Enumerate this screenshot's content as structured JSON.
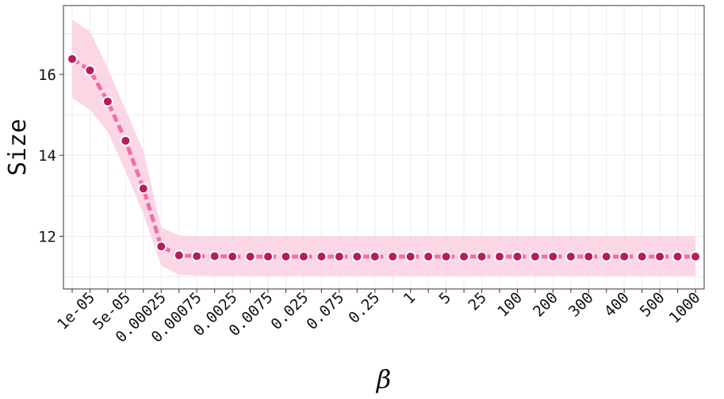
{
  "chart_data": {
    "type": "line",
    "xlabel": "β",
    "ylabel": "Size",
    "ylim": [
      10.7,
      17.7
    ],
    "yticks": [
      12,
      14,
      16
    ],
    "grid": true,
    "x_all": [
      "5e-06",
      "1e-05",
      "2.5e-05",
      "5e-05",
      "0.0001",
      "0.00025",
      "0.0005",
      "0.00075",
      "0.001",
      "0.0025",
      "0.005",
      "0.0075",
      "0.01",
      "0.025",
      "0.05",
      "0.075",
      "0.1",
      "0.25",
      "0.5",
      "1",
      "2.5",
      "5",
      "10",
      "25",
      "50",
      "100",
      "150",
      "200",
      "250",
      "300",
      "350",
      "400",
      "450",
      "500",
      "750",
      "1000"
    ],
    "x_tick_labels": [
      "",
      "1e-05",
      "",
      "5e-05",
      "",
      "0.00025",
      "",
      "0.00075",
      "",
      "0.0025",
      "",
      "0.0075",
      "",
      "0.025",
      "",
      "0.075",
      "",
      "0.25",
      "",
      "1",
      "",
      "5",
      "",
      "25",
      "",
      "100",
      "",
      "200",
      "",
      "300",
      "",
      "400",
      "",
      "500",
      "",
      "1000"
    ],
    "series": [
      {
        "color": "#f06fa6",
        "marker_color": "#b81c5c",
        "band_color": "#fbd3e2",
        "values": [
          16.38,
          16.1,
          15.33,
          14.36,
          13.18,
          11.75,
          11.53,
          11.51,
          11.51,
          11.5,
          11.5,
          11.5,
          11.5,
          11.5,
          11.5,
          11.5,
          11.5,
          11.5,
          11.5,
          11.5,
          11.5,
          11.5,
          11.5,
          11.5,
          11.5,
          11.5,
          11.5,
          11.5,
          11.5,
          11.5,
          11.5,
          11.5,
          11.5,
          11.5,
          11.5,
          11.5
        ],
        "band_upper": [
          17.35,
          17.06,
          16.15,
          15.13,
          14.1,
          12.22,
          12.02,
          12.0,
          12.0,
          12.0,
          12.0,
          12.0,
          12.0,
          12.0,
          12.0,
          12.0,
          12.0,
          12.0,
          12.0,
          12.0,
          12.0,
          12.0,
          12.0,
          12.0,
          12.0,
          12.0,
          12.0,
          12.0,
          12.0,
          12.0,
          12.0,
          12.0,
          12.0,
          12.0,
          12.0,
          12.0
        ],
        "band_lower": [
          15.42,
          15.12,
          14.58,
          13.6,
          12.55,
          11.27,
          11.05,
          11.03,
          11.02,
          11.02,
          11.02,
          11.02,
          11.02,
          11.02,
          11.02,
          11.02,
          11.02,
          11.02,
          11.02,
          11.02,
          11.02,
          11.02,
          11.02,
          11.02,
          11.02,
          11.02,
          11.02,
          11.02,
          11.02,
          11.02,
          11.02,
          11.02,
          11.02,
          11.02,
          11.02,
          11.02
        ]
      }
    ]
  }
}
